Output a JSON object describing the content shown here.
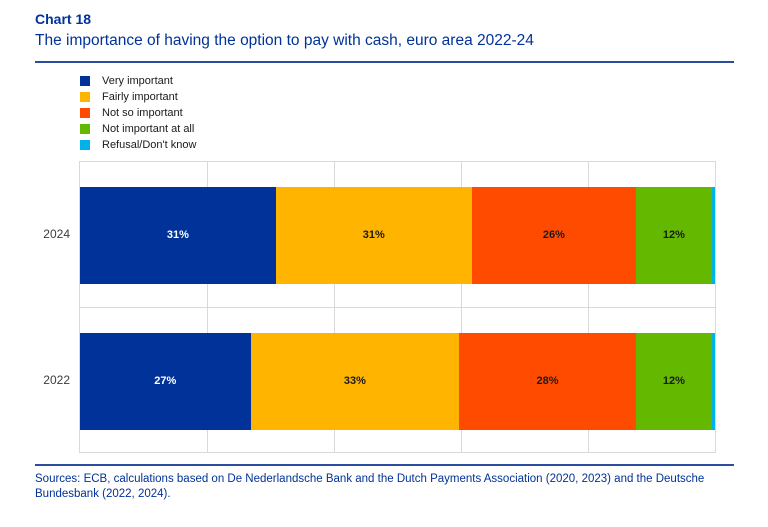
{
  "header": {
    "chart_label": "Chart 18",
    "title": "The importance of having the option to pay with cash, euro area 2022-24"
  },
  "footer": {
    "sources_line1": "Sources: ECB, calculations based on De Nederlandsche Bank and the Dutch Payments Association (2020, 2023) and the Deutsche",
    "sources_line2": "Bundesbank (2022, 2024)."
  },
  "colors": {
    "title_blue": "#003299",
    "divider_blue": "#2b4da0",
    "grid_gray": "#d9d9d9",
    "plot_border": "#d9d9d9"
  },
  "chart_data": {
    "type": "bar",
    "orientation": "horizontal",
    "stacked": true,
    "unit": "%",
    "title": "The importance of having the option to pay with cash, euro area 2022-24",
    "categories": [
      "2024",
      "2022"
    ],
    "series": [
      {
        "name": "Very important",
        "color": "#003299",
        "label_color": "#ffffff",
        "values": [
          31,
          27
        ],
        "labels": [
          "31%",
          "27%"
        ]
      },
      {
        "name": "Fairly important",
        "color": "#ffb400",
        "label_color": "#1a1a1a",
        "values": [
          31,
          33
        ],
        "labels": [
          "31%",
          "33%"
        ]
      },
      {
        "name": "Not so important",
        "color": "#ff4b00",
        "label_color": "#1a1a1a",
        "values": [
          26,
          28
        ],
        "labels": [
          "26%",
          "28%"
        ]
      },
      {
        "name": "Not important at all",
        "color": "#65b800",
        "label_color": "#1a1a1a",
        "values": [
          12,
          12
        ],
        "labels": [
          "12%",
          "12%"
        ]
      },
      {
        "name": "Refusal/Don't know",
        "color": "#00b1ea",
        "label_color": "#1a1a1a",
        "values": [
          0.5,
          0.5
        ],
        "labels": [
          "",
          ""
        ]
      }
    ],
    "xlim": [
      0,
      100
    ],
    "gridlines_percent": [
      20,
      40,
      60,
      80
    ],
    "grid": true,
    "legend_position": "top-left"
  }
}
